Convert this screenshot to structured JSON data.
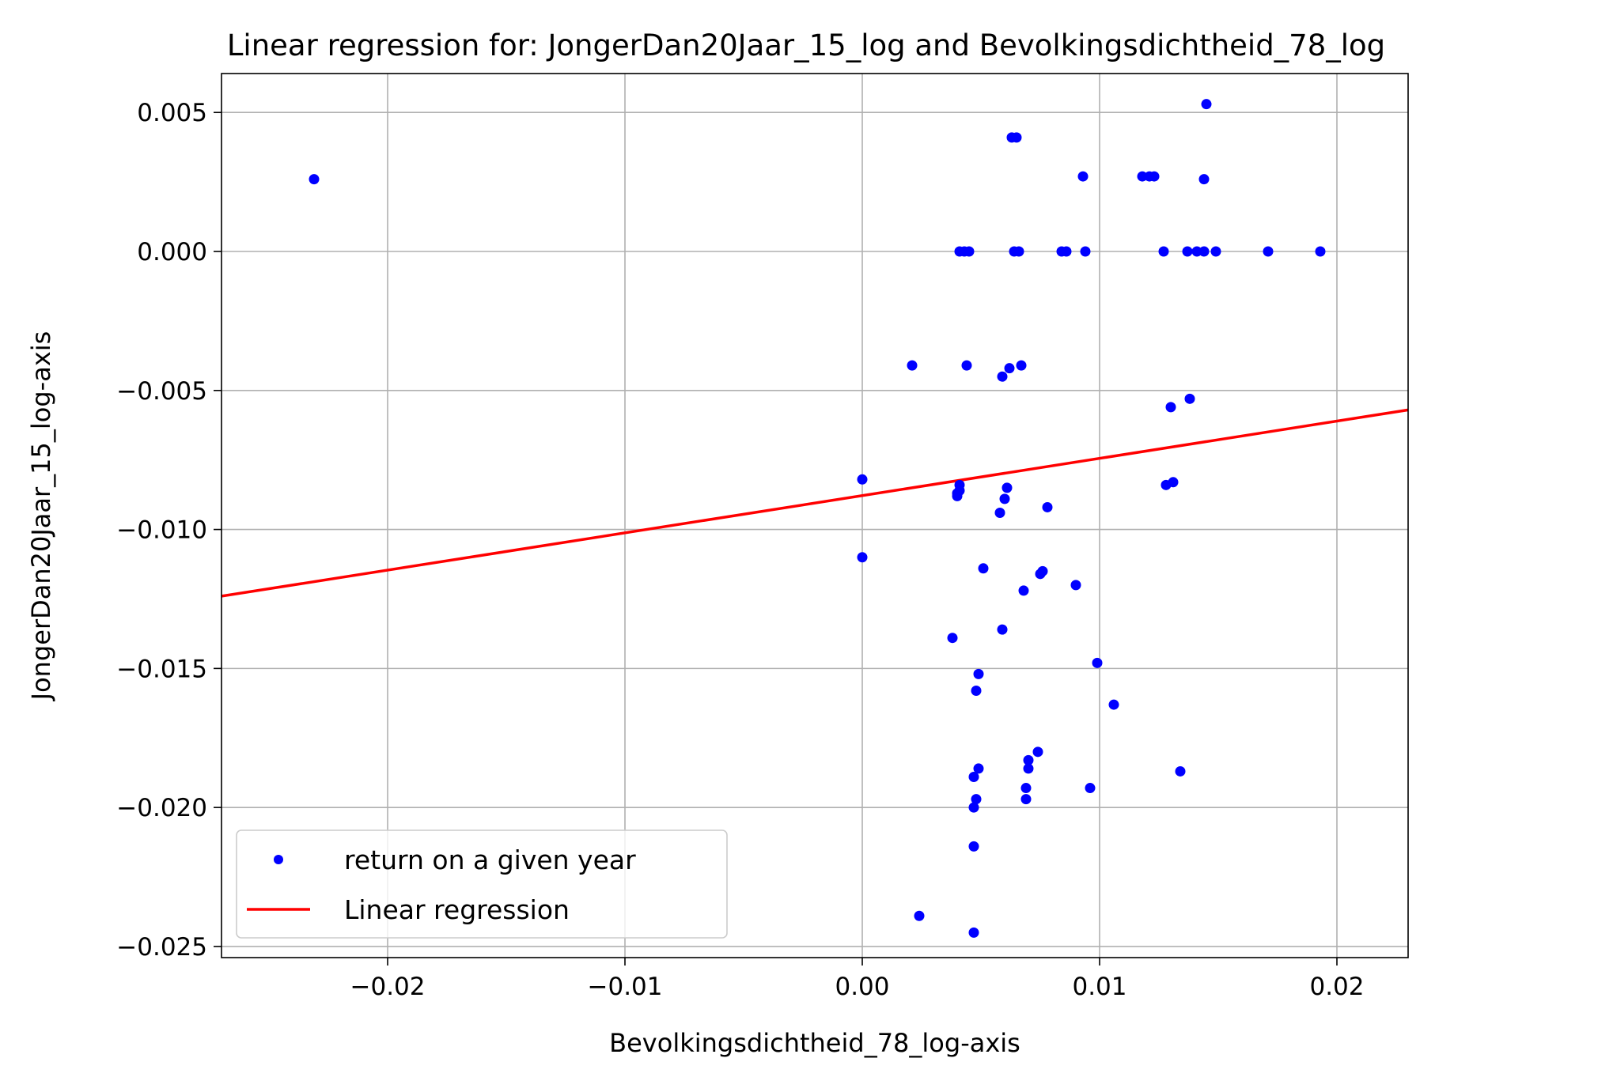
{
  "chart_data": {
    "type": "scatter",
    "title": "Linear regression for: JongerDan20Jaar_15_log and Bevolkingsdichtheid_78_log",
    "xlabel": "Bevolkingsdichtheid_78_log-axis",
    "ylabel": "JongerDan20Jaar_15_log-axis",
    "xlim": [
      -0.027,
      0.023
    ],
    "ylim": [
      -0.0254,
      0.0064
    ],
    "x_ticks": [
      -0.02,
      -0.01,
      0.0,
      0.01,
      0.02
    ],
    "x_tick_labels": [
      "−0.02",
      "−0.01",
      "0.00",
      "0.01",
      "0.02"
    ],
    "y_ticks": [
      0.005,
      0.0,
      -0.005,
      -0.01,
      -0.015,
      -0.02,
      -0.025
    ],
    "y_tick_labels": [
      "0.005",
      "0.000",
      "−0.005",
      "−0.010",
      "−0.015",
      "−0.020",
      "−0.025"
    ],
    "grid": true,
    "legend_position": "lower-left",
    "colors": {
      "points": "#0000ff",
      "regression": "#ff0000"
    },
    "series": [
      {
        "name": "return on a given year",
        "type": "scatter",
        "points": [
          [
            -0.0231,
            0.0026
          ],
          [
            0.0063,
            0.0041
          ],
          [
            0.0065,
            0.0041
          ],
          [
            0.0093,
            0.0027
          ],
          [
            0.0118,
            0.0027
          ],
          [
            0.0121,
            0.0027
          ],
          [
            0.0123,
            0.0027
          ],
          [
            0.0144,
            0.0026
          ],
          [
            0.0145,
            0.0053
          ],
          [
            0.0041,
            0.0
          ],
          [
            0.0043,
            0.0
          ],
          [
            0.0045,
            0.0
          ],
          [
            0.0064,
            0.0
          ],
          [
            0.0066,
            0.0
          ],
          [
            0.0084,
            0.0
          ],
          [
            0.0086,
            0.0
          ],
          [
            0.0094,
            0.0
          ],
          [
            0.0127,
            0.0
          ],
          [
            0.0137,
            0.0
          ],
          [
            0.0141,
            0.0
          ],
          [
            0.0144,
            0.0
          ],
          [
            0.0149,
            0.0
          ],
          [
            0.0171,
            0.0
          ],
          [
            0.0193,
            0.0
          ],
          [
            0.0021,
            -0.0041
          ],
          [
            0.0044,
            -0.0041
          ],
          [
            0.0059,
            -0.0045
          ],
          [
            0.0062,
            -0.0042
          ],
          [
            0.0067,
            -0.0041
          ],
          [
            0.013,
            -0.0056
          ],
          [
            0.0138,
            -0.0053
          ],
          [
            0.0,
            -0.0082
          ],
          [
            0.004,
            -0.0087
          ],
          [
            0.0041,
            -0.0084
          ],
          [
            0.004,
            -0.0088
          ],
          [
            0.0041,
            -0.0086
          ],
          [
            0.006,
            -0.0089
          ],
          [
            0.0061,
            -0.0085
          ],
          [
            0.0058,
            -0.0094
          ],
          [
            0.0078,
            -0.0092
          ],
          [
            0.0128,
            -0.0084
          ],
          [
            0.0131,
            -0.0083
          ],
          [
            0.0,
            -0.011
          ],
          [
            0.0051,
            -0.0114
          ],
          [
            0.0075,
            -0.0116
          ],
          [
            0.0076,
            -0.0115
          ],
          [
            0.0068,
            -0.0122
          ],
          [
            0.009,
            -0.012
          ],
          [
            0.0038,
            -0.0139
          ],
          [
            0.0059,
            -0.0136
          ],
          [
            0.0049,
            -0.0152
          ],
          [
            0.0048,
            -0.0158
          ],
          [
            0.0099,
            -0.0148
          ],
          [
            0.0106,
            -0.0163
          ],
          [
            0.0074,
            -0.018
          ],
          [
            0.007,
            -0.0183
          ],
          [
            0.007,
            -0.0186
          ],
          [
            0.0049,
            -0.0186
          ],
          [
            0.0047,
            -0.0189
          ],
          [
            0.0134,
            -0.0187
          ],
          [
            0.0069,
            -0.0193
          ],
          [
            0.0069,
            -0.0197
          ],
          [
            0.0048,
            -0.0197
          ],
          [
            0.0047,
            -0.02
          ],
          [
            0.0096,
            -0.0193
          ],
          [
            0.0047,
            -0.0214
          ],
          [
            0.0024,
            -0.0239
          ],
          [
            0.0047,
            -0.0245
          ]
        ]
      },
      {
        "name": "Linear regression",
        "type": "line",
        "points": [
          [
            -0.027,
            -0.0124
          ],
          [
            0.023,
            -0.0057
          ]
        ]
      }
    ]
  }
}
